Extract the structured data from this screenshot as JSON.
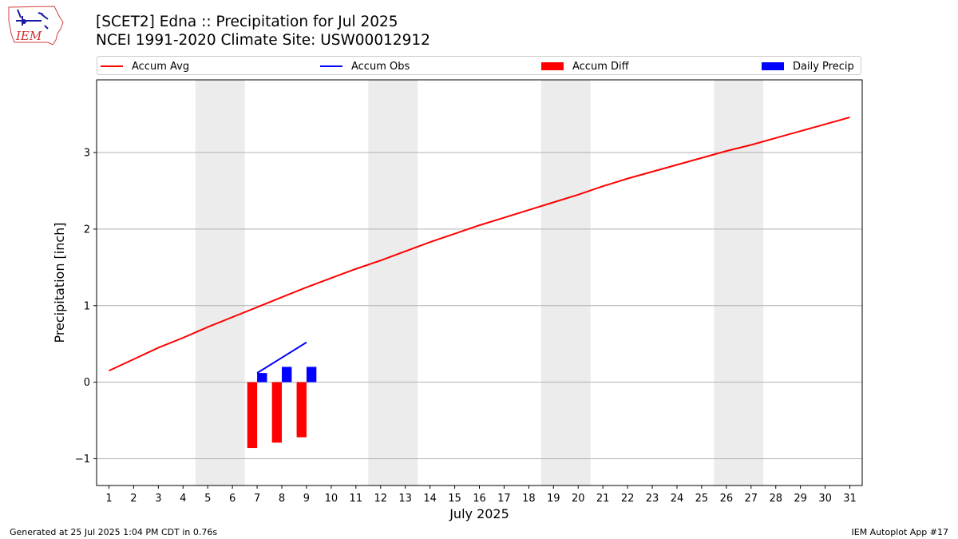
{
  "logo": {
    "text": "IEM"
  },
  "title": {
    "line1": "[SCET2] Edna :: Precipitation for Jul 2025",
    "line2": "NCEI 1991-2020 Climate Site: USW00012912"
  },
  "legend": [
    {
      "label": "Accum Avg",
      "color": "#ff0000",
      "kind": "line"
    },
    {
      "label": "Accum Obs",
      "color": "#0000ff",
      "kind": "line"
    },
    {
      "label": "Accum Diff",
      "color": "#ff0000",
      "kind": "box"
    },
    {
      "label": "Daily Precip",
      "color": "#0000ff",
      "kind": "box"
    }
  ],
  "footer": {
    "left": "Generated at 25 Jul 2025 1:04 PM CDT in 0.76s",
    "right": "IEM Autoplot App #17"
  },
  "chart_data": {
    "type": "bar",
    "title": "[SCET2] Edna :: Precipitation for Jul 2025",
    "xlabel": "July 2025",
    "ylabel": "Precipitation [inch]",
    "xlim": [
      0.5,
      31.5
    ],
    "ylim": [
      -1.35,
      3.95
    ],
    "yticks": [
      -1,
      0,
      1,
      2,
      3
    ],
    "ytick_labels": [
      "−1",
      "0",
      "1",
      "2",
      "3"
    ],
    "xticks": [
      1,
      2,
      3,
      4,
      5,
      6,
      7,
      8,
      9,
      10,
      11,
      12,
      13,
      14,
      15,
      16,
      17,
      18,
      19,
      20,
      21,
      22,
      23,
      24,
      25,
      26,
      27,
      28,
      29,
      30,
      31
    ],
    "grid": "y",
    "weekend_shading": [
      [
        4.5,
        6.5
      ],
      [
        11.5,
        13.5
      ],
      [
        18.5,
        20.5
      ],
      [
        25.5,
        27.5
      ]
    ],
    "shade_color": "#ececec",
    "series": [
      {
        "name": "Accum Avg",
        "type": "line",
        "color": "#ff0000",
        "x": [
          1,
          2,
          3,
          4,
          5,
          6,
          7,
          8,
          9,
          10,
          11,
          12,
          13,
          14,
          15,
          16,
          17,
          18,
          19,
          20,
          21,
          22,
          23,
          24,
          25,
          26,
          27,
          28,
          29,
          30,
          31
        ],
        "values": [
          0.15,
          0.3,
          0.45,
          0.58,
          0.72,
          0.85,
          0.98,
          1.11,
          1.24,
          1.36,
          1.48,
          1.59,
          1.71,
          1.83,
          1.94,
          2.05,
          2.15,
          2.25,
          2.35,
          2.45,
          2.56,
          2.66,
          2.75,
          2.84,
          2.93,
          3.02,
          3.1,
          3.19,
          3.28,
          3.37,
          3.46
        ]
      },
      {
        "name": "Accum Obs",
        "type": "line",
        "color": "#0000ff",
        "x": [
          7,
          8,
          9
        ],
        "values": [
          0.12,
          0.32,
          0.52
        ]
      },
      {
        "name": "Accum Diff",
        "type": "bar",
        "color": "#ff0000",
        "offset": -0.2,
        "x": [
          7,
          8,
          9
        ],
        "values": [
          -0.86,
          -0.79,
          -0.72
        ]
      },
      {
        "name": "Daily Precip",
        "type": "bar",
        "color": "#0000ff",
        "offset": 0.2,
        "x": [
          7,
          8,
          9
        ],
        "values": [
          0.12,
          0.2,
          0.2
        ]
      }
    ]
  }
}
